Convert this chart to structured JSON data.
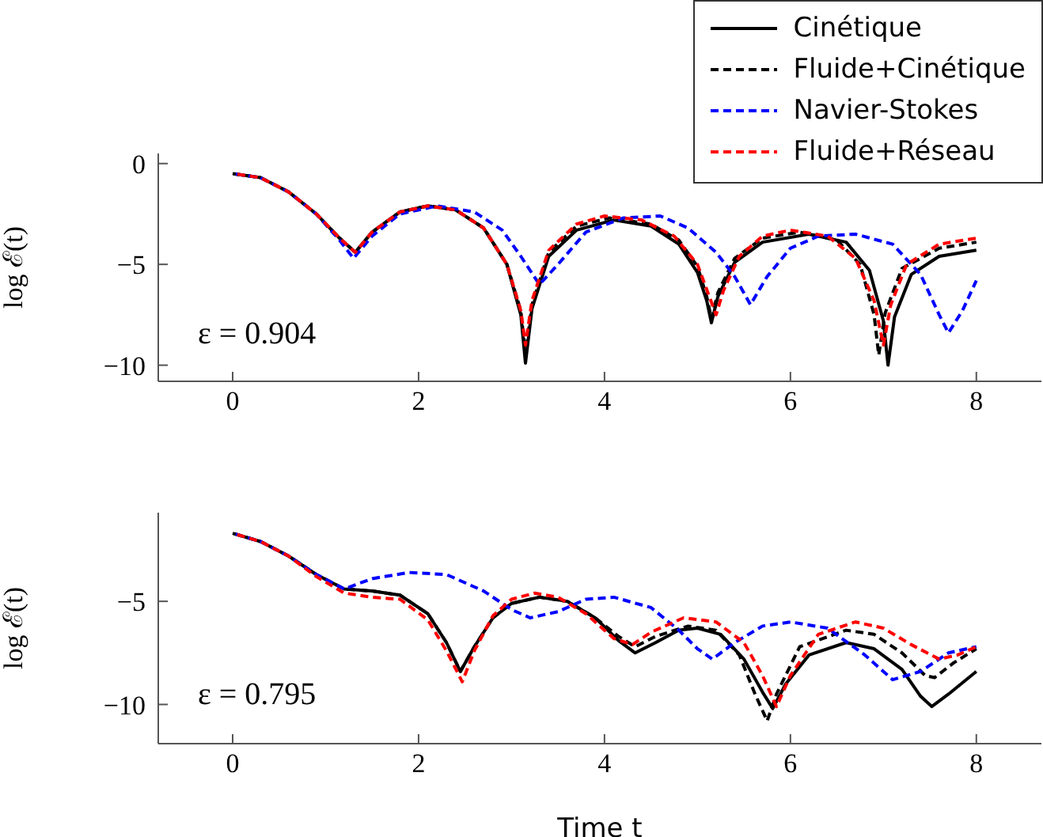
{
  "chart_data": [
    {
      "type": "line",
      "ylabel": "log ℰ(t)",
      "annotations": [
        "ε = 0.904"
      ],
      "xlim": [
        -0.8,
        8.7
      ],
      "ylim": [
        -10.8,
        0.5
      ],
      "xticks": [
        0,
        2,
        4,
        6,
        8
      ],
      "yticks": [
        0,
        -5,
        -10
      ],
      "legend": "top right",
      "marker": "none",
      "series": [
        {
          "name": "Cinétique",
          "color": "#000000",
          "line_style": "solid",
          "x": [
            0,
            0.3,
            0.6,
            0.9,
            1.15,
            1.32,
            1.5,
            1.8,
            2.1,
            2.4,
            2.7,
            2.95,
            3.1,
            3.15,
            3.22,
            3.4,
            3.7,
            4.1,
            4.5,
            4.8,
            5.0,
            5.1,
            5.15,
            5.22,
            5.4,
            5.7,
            6.2,
            6.6,
            6.85,
            7.0,
            7.05,
            7.12,
            7.3,
            7.6,
            8
          ],
          "values": [
            -0.5,
            -0.7,
            -1.4,
            -2.5,
            -3.7,
            -4.4,
            -3.4,
            -2.4,
            -2.1,
            -2.3,
            -3.2,
            -5.0,
            -7.5,
            -9.9,
            -7.2,
            -4.6,
            -3.3,
            -2.8,
            -3.1,
            -4.0,
            -5.4,
            -6.8,
            -7.9,
            -6.6,
            -4.9,
            -3.9,
            -3.5,
            -3.9,
            -5.3,
            -7.8,
            -10,
            -7.6,
            -5.5,
            -4.6,
            -4.3
          ]
        },
        {
          "name": "Fluide+Cinétique",
          "color": "#000000",
          "line_style": "dashed",
          "x": [
            0,
            0.3,
            0.6,
            0.9,
            1.15,
            1.32,
            1.5,
            1.8,
            2.1,
            2.4,
            2.7,
            2.95,
            3.1,
            3.15,
            3.22,
            3.4,
            3.7,
            4.05,
            4.5,
            4.8,
            5.0,
            5.1,
            5.15,
            5.22,
            5.4,
            5.7,
            6.1,
            6.5,
            6.75,
            6.9,
            6.95,
            7.02,
            7.2,
            7.6,
            8
          ],
          "values": [
            -0.5,
            -0.7,
            -1.4,
            -2.5,
            -3.7,
            -4.4,
            -3.4,
            -2.4,
            -2.1,
            -2.3,
            -3.2,
            -5.0,
            -7.3,
            -9.5,
            -7.0,
            -4.4,
            -3.1,
            -2.7,
            -3.0,
            -3.8,
            -5.1,
            -6.6,
            -7.7,
            -6.4,
            -4.7,
            -3.7,
            -3.4,
            -3.8,
            -5.0,
            -7.5,
            -9.5,
            -7.4,
            -5.2,
            -4.2,
            -3.9
          ]
        },
        {
          "name": "Navier-Stokes",
          "color": "#0000ff",
          "line_style": "dashed",
          "x": [
            0,
            0.3,
            0.6,
            0.9,
            1.15,
            1.3,
            1.5,
            1.8,
            2.2,
            2.6,
            2.9,
            3.1,
            3.3,
            3.5,
            3.8,
            4.2,
            4.6,
            4.9,
            5.2,
            5.4,
            5.57,
            5.75,
            6.0,
            6.3,
            6.7,
            7.1,
            7.4,
            7.6,
            7.7,
            7.85,
            8
          ],
          "values": [
            -0.5,
            -0.7,
            -1.4,
            -2.5,
            -3.8,
            -4.7,
            -3.6,
            -2.5,
            -2.1,
            -2.4,
            -3.3,
            -4.6,
            -6.0,
            -5.0,
            -3.4,
            -2.7,
            -2.6,
            -3.2,
            -4.4,
            -5.6,
            -7.0,
            -5.6,
            -4.2,
            -3.6,
            -3.5,
            -4.0,
            -5.5,
            -7.5,
            -8.4,
            -7.3,
            -5.8
          ]
        },
        {
          "name": "Fluide+Réseau",
          "color": "#ff0000",
          "line_style": "dashed",
          "x": [
            0,
            0.3,
            0.6,
            0.9,
            1.15,
            1.32,
            1.5,
            1.8,
            2.1,
            2.4,
            2.7,
            2.95,
            3.1,
            3.15,
            3.22,
            3.4,
            3.7,
            4.0,
            4.4,
            4.75,
            5.0,
            5.12,
            5.2,
            5.28,
            5.45,
            5.7,
            6.0,
            6.4,
            6.7,
            6.9,
            7.0,
            7.08,
            7.25,
            7.6,
            8
          ],
          "values": [
            -0.5,
            -0.7,
            -1.4,
            -2.5,
            -3.7,
            -4.4,
            -3.4,
            -2.4,
            -2.1,
            -2.3,
            -3.2,
            -5.0,
            -7.3,
            -9.0,
            -6.8,
            -4.3,
            -3.0,
            -2.6,
            -2.8,
            -3.6,
            -5.0,
            -6.5,
            -7.5,
            -6.3,
            -4.6,
            -3.6,
            -3.3,
            -3.6,
            -4.7,
            -6.8,
            -9.0,
            -7.0,
            -5.0,
            -4.0,
            -3.7
          ]
        }
      ]
    },
    {
      "type": "line",
      "xlabel": "Time t",
      "ylabel": "log ℰ(t)",
      "annotations": [
        "ε = 0.795"
      ],
      "xlim": [
        -0.8,
        8.7
      ],
      "ylim": [
        -11.9,
        -0.7
      ],
      "xticks": [
        0,
        2,
        4,
        6,
        8
      ],
      "yticks": [
        -5,
        -10
      ],
      "marker": "none",
      "series": [
        {
          "color": "#000000",
          "line_style": "solid",
          "x": [
            0,
            0.3,
            0.6,
            0.9,
            1.2,
            1.5,
            1.8,
            2.1,
            2.3,
            2.45,
            2.6,
            2.8,
            3.0,
            3.3,
            3.6,
            3.9,
            4.15,
            4.33,
            4.55,
            4.8,
            5.0,
            5.25,
            5.5,
            5.7,
            5.81,
            5.95,
            6.2,
            6.6,
            6.9,
            7.2,
            7.4,
            7.52,
            7.7,
            8
          ],
          "values": [
            -1.7,
            -2.1,
            -2.8,
            -3.7,
            -4.4,
            -4.5,
            -4.7,
            -5.6,
            -7.0,
            -8.4,
            -7.2,
            -5.8,
            -5.1,
            -4.8,
            -5.0,
            -5.8,
            -6.9,
            -7.5,
            -7.0,
            -6.4,
            -6.3,
            -6.6,
            -7.8,
            -9.4,
            -10.2,
            -9.0,
            -7.6,
            -7.0,
            -7.3,
            -8.3,
            -9.6,
            -10.1,
            -9.5,
            -8.4
          ]
        },
        {
          "color": "#000000",
          "line_style": "dashed",
          "x": [
            0,
            0.3,
            0.6,
            0.9,
            1.2,
            1.5,
            1.8,
            2.1,
            2.3,
            2.45,
            2.6,
            2.8,
            3.0,
            3.3,
            3.6,
            3.9,
            4.15,
            4.33,
            4.55,
            4.9,
            5.2,
            5.45,
            5.62,
            5.75,
            5.85,
            6.1,
            6.6,
            6.9,
            7.2,
            7.45,
            7.55,
            7.75,
            8
          ],
          "values": [
            -1.7,
            -2.1,
            -2.8,
            -3.7,
            -4.4,
            -4.5,
            -4.7,
            -5.6,
            -7.0,
            -8.4,
            -7.2,
            -5.8,
            -5.1,
            -4.8,
            -5.0,
            -5.8,
            -6.7,
            -7.2,
            -6.7,
            -6.2,
            -6.4,
            -7.6,
            -9.5,
            -10.8,
            -9.5,
            -7.2,
            -6.4,
            -6.6,
            -7.5,
            -8.6,
            -8.7,
            -8.0,
            -7.3
          ]
        },
        {
          "color": "#0000ff",
          "line_style": "dashed",
          "x": [
            0,
            0.3,
            0.6,
            0.9,
            1.2,
            1.5,
            1.9,
            2.3,
            2.7,
            3.0,
            3.2,
            3.5,
            3.8,
            4.1,
            4.5,
            4.8,
            5.0,
            5.16,
            5.4,
            5.7,
            6.0,
            6.4,
            6.8,
            7.1,
            7.4,
            7.7,
            8
          ],
          "values": [
            -1.7,
            -2.1,
            -2.8,
            -3.7,
            -4.4,
            -3.9,
            -3.6,
            -3.7,
            -4.5,
            -5.4,
            -5.8,
            -5.5,
            -4.9,
            -4.8,
            -5.3,
            -6.4,
            -7.3,
            -7.8,
            -7.0,
            -6.2,
            -6.0,
            -6.3,
            -7.6,
            -8.8,
            -8.4,
            -7.5,
            -7.2
          ]
        },
        {
          "color": "#ff0000",
          "line_style": "dashed",
          "x": [
            0,
            0.3,
            0.6,
            0.9,
            1.2,
            1.5,
            1.8,
            2.1,
            2.3,
            2.47,
            2.6,
            2.8,
            3.0,
            3.25,
            3.5,
            3.8,
            4.1,
            4.3,
            4.5,
            4.85,
            5.2,
            5.5,
            5.7,
            5.85,
            6.0,
            6.3,
            6.7,
            7.0,
            7.3,
            7.6,
            7.8,
            8
          ],
          "values": [
            -1.7,
            -2.1,
            -2.8,
            -3.8,
            -4.6,
            -4.8,
            -4.9,
            -5.9,
            -7.4,
            -8.9,
            -7.4,
            -5.7,
            -4.9,
            -4.6,
            -4.8,
            -5.6,
            -6.8,
            -7.1,
            -6.5,
            -5.8,
            -6.0,
            -7.0,
            -8.6,
            -10.1,
            -8.6,
            -6.6,
            -6.0,
            -6.3,
            -7.1,
            -7.8,
            -7.6,
            -7.2
          ]
        }
      ]
    }
  ]
}
